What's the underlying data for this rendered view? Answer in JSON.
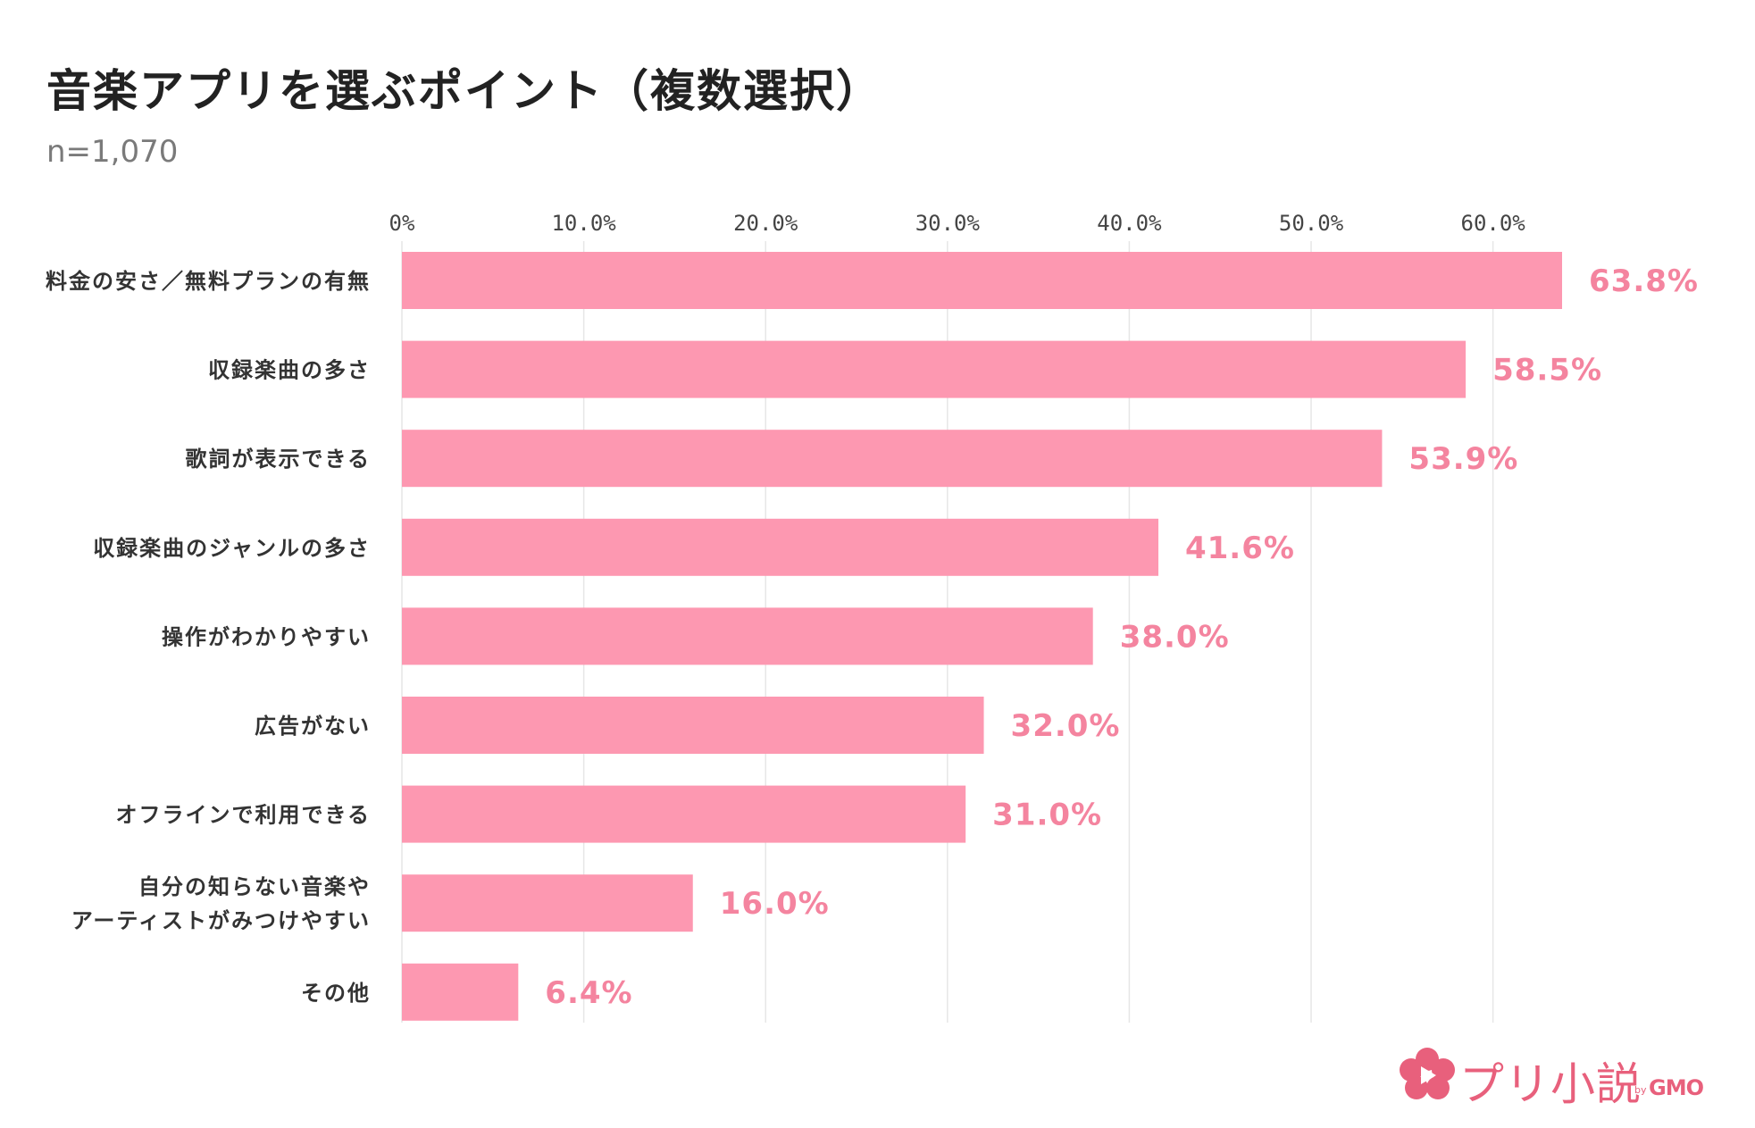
{
  "chart_data": {
    "type": "bar",
    "orientation": "horizontal",
    "title": "音楽アプリを選ぶポイント（複数選択）",
    "subtitle": "n=1,070",
    "categories": [
      [
        "料金の安さ／無料プランの有無"
      ],
      [
        "収録楽曲の多さ"
      ],
      [
        "歌詞が表示できる"
      ],
      [
        "収録楽曲のジャンルの多さ"
      ],
      [
        "操作がわかりやすい"
      ],
      [
        "広告がない"
      ],
      [
        "オフラインで利用できる"
      ],
      [
        "自分の知らない音楽や",
        "アーティストがみつけやすい"
      ],
      [
        "その他"
      ]
    ],
    "values": [
      63.8,
      58.5,
      53.9,
      41.6,
      38.0,
      32.0,
      31.0,
      16.0,
      6.4
    ],
    "value_labels": [
      "63.8%",
      "58.5%",
      "53.9%",
      "41.6%",
      "38.0%",
      "32.0%",
      "31.0%",
      "16.0%",
      "6.4%"
    ],
    "ticks": [
      0,
      10,
      20,
      30,
      40,
      50,
      60
    ],
    "tick_labels": [
      "0%",
      "10.0%",
      "20.0%",
      "30.0%",
      "40.0%",
      "50.0%",
      "60.0%"
    ],
    "xlim": [
      0,
      63.8
    ],
    "xaxis_position": "top",
    "grid": true,
    "bar_color": "#fd98b1",
    "label_color": "#f4849f",
    "grid_color": "#e6e6e6"
  },
  "brand": {
    "name": "プリ小説",
    "by": "by",
    "company": "GMO",
    "color": "#e8607c"
  }
}
